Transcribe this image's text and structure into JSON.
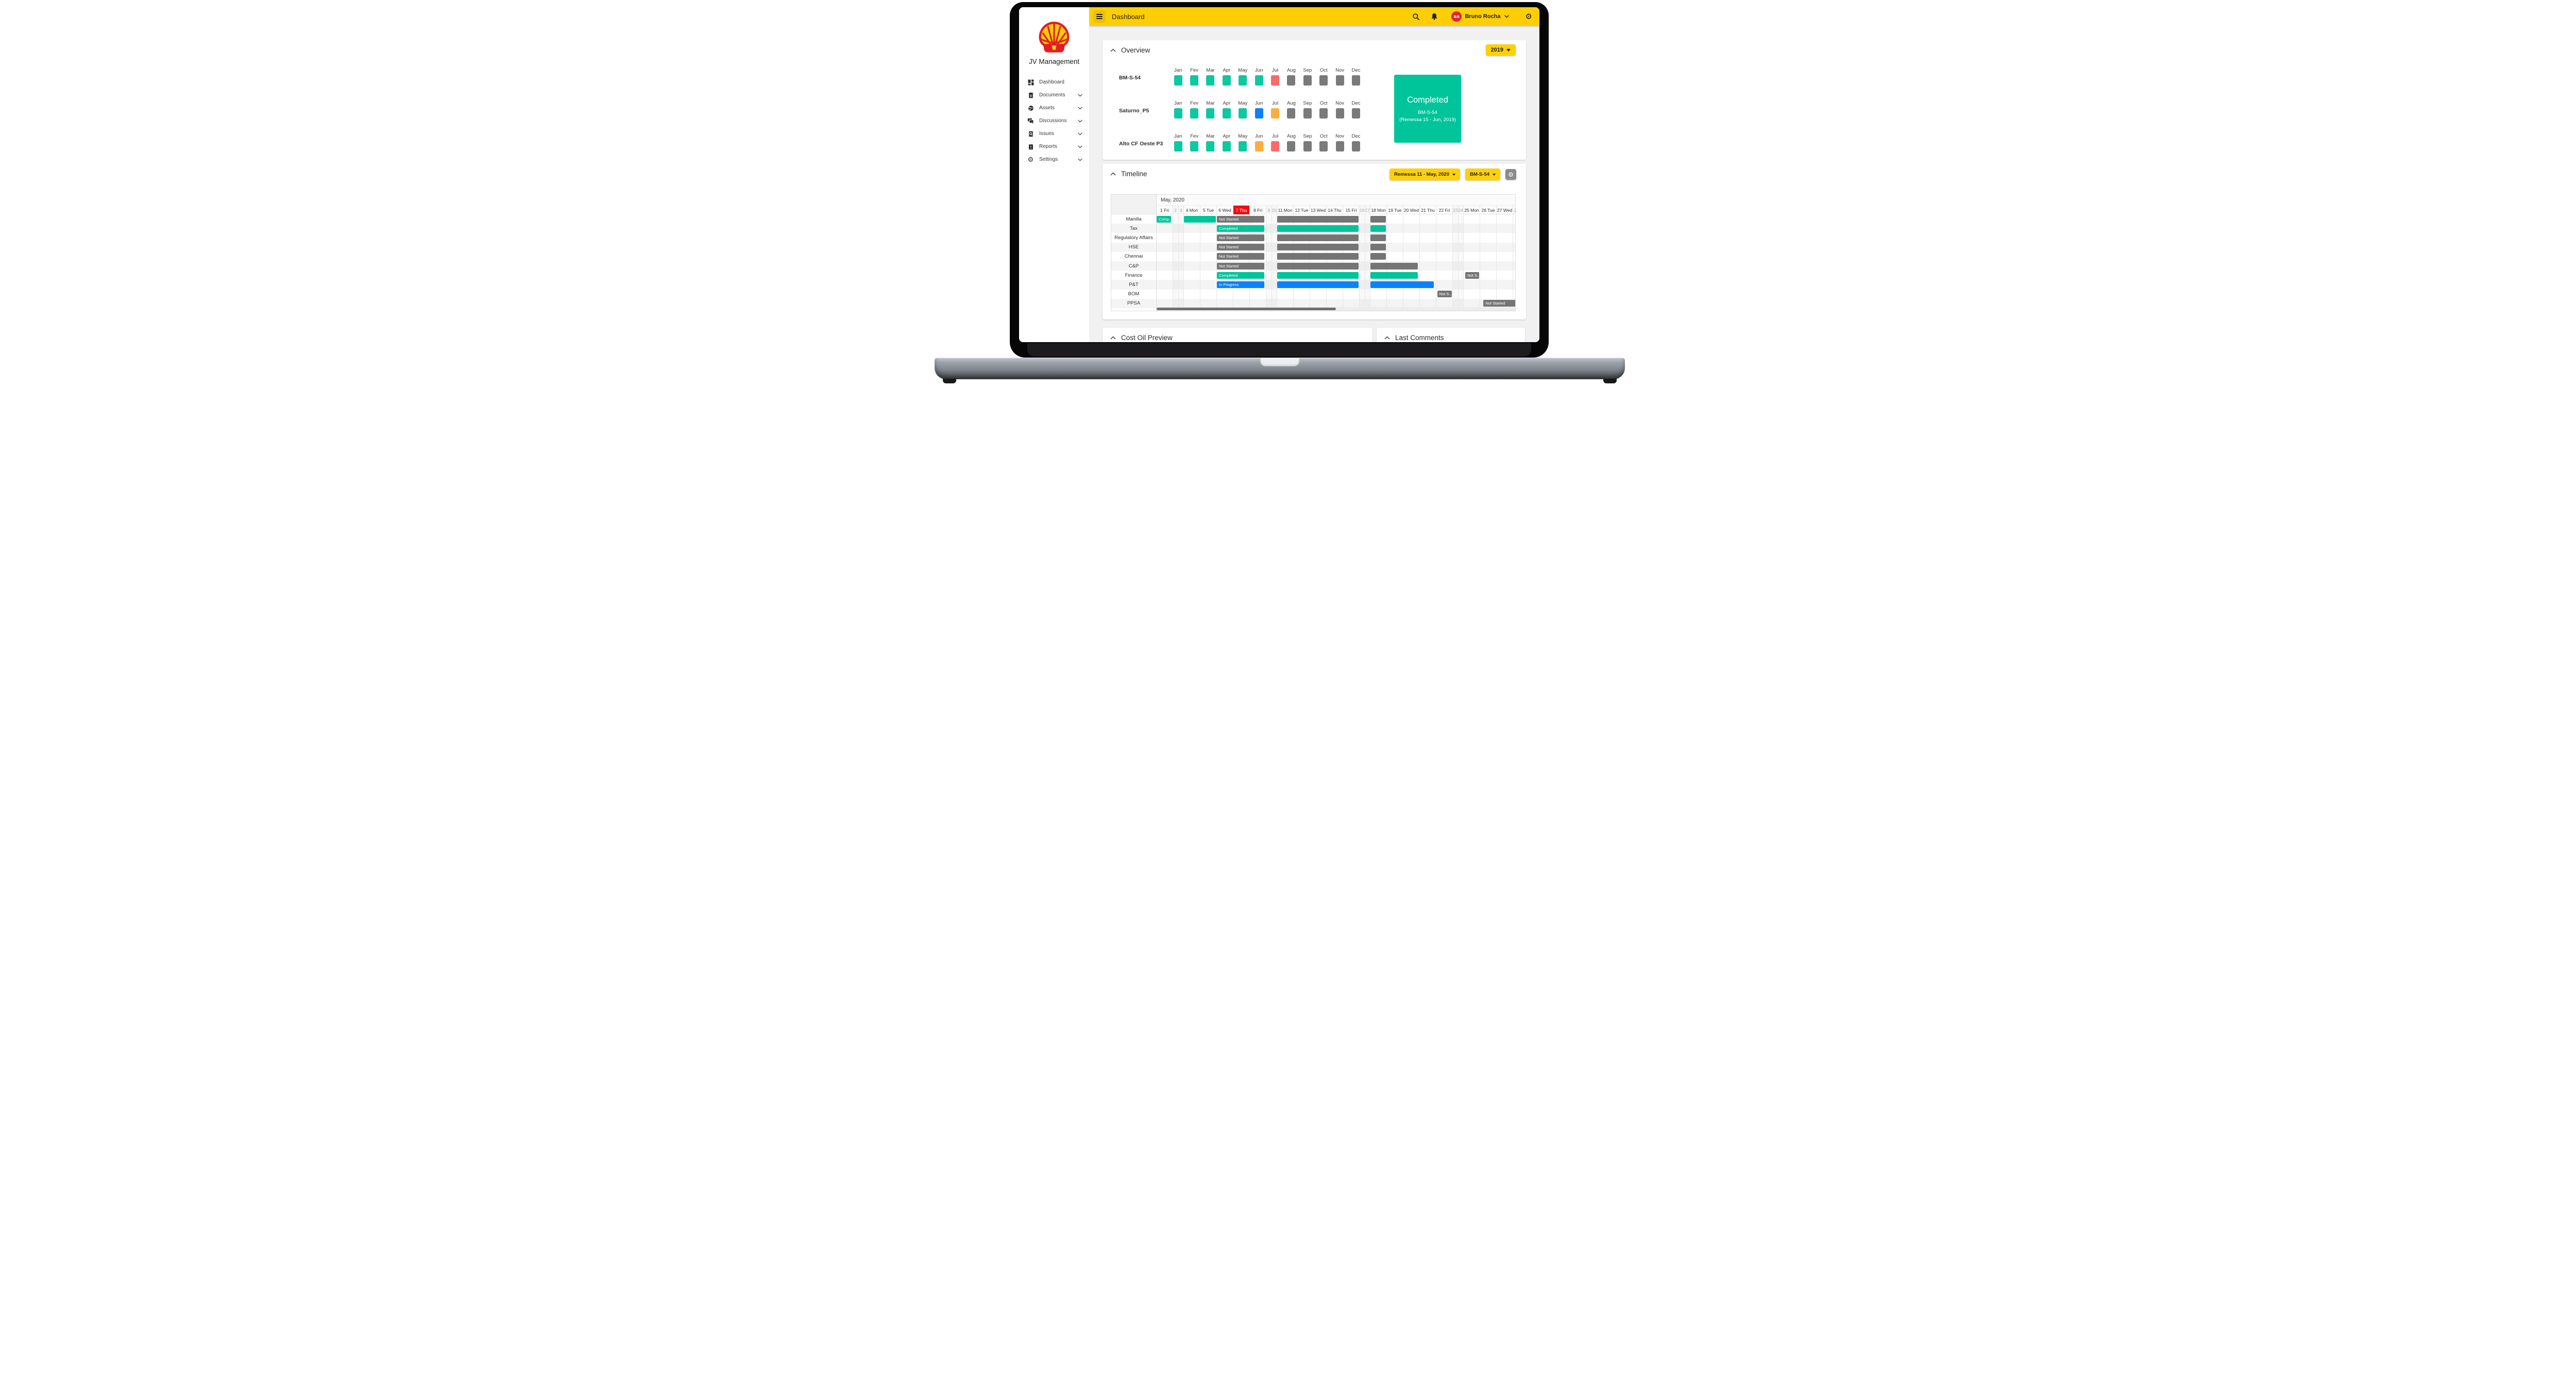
{
  "topbar": {
    "title": "Dashboard",
    "user_initials": "BR",
    "user_name": "Bruno Rocha",
    "icons": [
      "menu-icon",
      "search-icon",
      "bell-icon",
      "chevron-down-icon",
      "gear-icon"
    ]
  },
  "sidebar": {
    "brand": "JV Management",
    "logo": "shell-pecten-logo",
    "items": [
      {
        "label": "Dashboard",
        "icon": "dashboard-icon",
        "expandable": false
      },
      {
        "label": "Documents",
        "icon": "document-icon",
        "expandable": true
      },
      {
        "label": "Assets",
        "icon": "globe-icon",
        "expandable": true
      },
      {
        "label": "Discussions",
        "icon": "chat-icon",
        "expandable": true
      },
      {
        "label": "Issues",
        "icon": "issue-search-icon",
        "expandable": true
      },
      {
        "label": "Reports",
        "icon": "report-icon",
        "expandable": true
      },
      {
        "label": "Settings",
        "icon": "gear-icon",
        "expandable": true
      }
    ]
  },
  "overview": {
    "title": "Overview",
    "year_filter": "2019",
    "months": [
      "Jan",
      "Fev",
      "Mar",
      "Apr",
      "May",
      "Jun",
      "Jul",
      "Aug",
      "Sep",
      "Oct",
      "Nov",
      "Dec"
    ],
    "assets": [
      {
        "name": "BM-S-54",
        "month_status": [
          "done",
          "done",
          "done",
          "done",
          "done",
          "done",
          "alert",
          "none",
          "none",
          "none",
          "none",
          "none"
        ]
      },
      {
        "name": "Saturno_P5",
        "month_status": [
          "done",
          "done",
          "done",
          "done",
          "done",
          "progress",
          "warning",
          "none",
          "none",
          "none",
          "none",
          "none"
        ]
      },
      {
        "name": "Alto CF Oeste P3",
        "month_status": [
          "done",
          "done",
          "done",
          "done",
          "done",
          "warning",
          "alert",
          "none",
          "none",
          "none",
          "none",
          "none"
        ]
      }
    ],
    "highlight": {
      "status": "Completed",
      "asset": "BM-S-54",
      "detail": "(Remessa 15 - Jun, 2019)"
    }
  },
  "timeline": {
    "title": "Timeline",
    "remessa_filter": "Remessa 11 - May, 2020",
    "asset_filter": "BM-S-54",
    "month_label": "May, 2020",
    "days": [
      {
        "num": 1,
        "dow": "Fri"
      },
      {
        "num": 2,
        "dow": ""
      },
      {
        "num": 3,
        "dow": ""
      },
      {
        "num": 4,
        "dow": "Mon"
      },
      {
        "num": 5,
        "dow": "Tue"
      },
      {
        "num": 6,
        "dow": "Wed"
      },
      {
        "num": 7,
        "dow": "Thu",
        "today": true
      },
      {
        "num": 8,
        "dow": "Fri"
      },
      {
        "num": 9,
        "dow": ""
      },
      {
        "num": 10,
        "dow": ""
      },
      {
        "num": 11,
        "dow": "Mon"
      },
      {
        "num": 12,
        "dow": "Tue"
      },
      {
        "num": 13,
        "dow": "Wed"
      },
      {
        "num": 14,
        "dow": "Thu"
      },
      {
        "num": 15,
        "dow": "Fri"
      },
      {
        "num": 16,
        "dow": ""
      },
      {
        "num": 17,
        "dow": ""
      },
      {
        "num": 18,
        "dow": "Mon"
      },
      {
        "num": 19,
        "dow": "Tue"
      },
      {
        "num": 20,
        "dow": "Wed"
      },
      {
        "num": 21,
        "dow": "Thu"
      },
      {
        "num": 22,
        "dow": "Fri"
      },
      {
        "num": 23,
        "dow": ""
      },
      {
        "num": 24,
        "dow": ""
      },
      {
        "num": 25,
        "dow": "Mon"
      },
      {
        "num": 26,
        "dow": "Tue"
      },
      {
        "num": 27,
        "dow": "Wed"
      },
      {
        "num": 28,
        "dow": "Thu"
      }
    ],
    "rows": [
      {
        "name": "Manilla",
        "bars": [
          {
            "start": 1,
            "span": 0.95,
            "color": "teal",
            "label": "Comp..."
          },
          {
            "start": 4,
            "span": 2,
            "color": "teal",
            "label": ""
          },
          {
            "start": 6,
            "span": 2.95,
            "color": "gray",
            "label": "Not Started"
          },
          {
            "start": 11,
            "span": 5,
            "color": "gray",
            "label": ""
          },
          {
            "start": 18,
            "span": 1,
            "color": "gray",
            "label": ""
          }
        ]
      },
      {
        "name": "Tax",
        "bars": [
          {
            "start": 6,
            "span": 2.95,
            "color": "teal",
            "label": "Completed"
          },
          {
            "start": 11,
            "span": 5,
            "color": "teal",
            "label": ""
          },
          {
            "start": 18,
            "span": 1,
            "color": "teal",
            "label": ""
          }
        ]
      },
      {
        "name": "Regulatory Affairs",
        "bars": [
          {
            "start": 6,
            "span": 2.95,
            "color": "gray",
            "label": "Not Started"
          },
          {
            "start": 11,
            "span": 5,
            "color": "gray",
            "label": ""
          },
          {
            "start": 18,
            "span": 1,
            "color": "gray",
            "label": ""
          }
        ]
      },
      {
        "name": "HSE",
        "bars": [
          {
            "start": 6,
            "span": 2.95,
            "color": "gray",
            "label": "Not Started"
          },
          {
            "start": 11,
            "span": 5,
            "color": "gray",
            "label": ""
          },
          {
            "start": 18,
            "span": 1,
            "color": "gray",
            "label": ""
          }
        ]
      },
      {
        "name": "Chennai",
        "bars": [
          {
            "start": 6,
            "span": 2.95,
            "color": "gray",
            "label": "Not Started"
          },
          {
            "start": 11,
            "span": 5,
            "color": "gray",
            "label": ""
          },
          {
            "start": 18,
            "span": 1,
            "color": "gray",
            "label": ""
          }
        ]
      },
      {
        "name": "C&P",
        "bars": [
          {
            "start": 6,
            "span": 2.95,
            "color": "gray",
            "label": "Not Started"
          },
          {
            "start": 11,
            "span": 5,
            "color": "gray",
            "label": ""
          },
          {
            "start": 18,
            "span": 2.95,
            "color": "gray",
            "label": ""
          }
        ]
      },
      {
        "name": "Finance",
        "bars": [
          {
            "start": 6,
            "span": 2.95,
            "color": "teal",
            "label": "Completed"
          },
          {
            "start": 11,
            "span": 5,
            "color": "teal",
            "label": ""
          },
          {
            "start": 18,
            "span": 2.95,
            "color": "teal",
            "label": ""
          },
          {
            "start": 25.1,
            "span": 0.9,
            "color": "gray",
            "label": "Not S..."
          }
        ]
      },
      {
        "name": "P&T",
        "bars": [
          {
            "start": 6,
            "span": 2.95,
            "color": "blue",
            "label": "In Progress"
          },
          {
            "start": 11,
            "span": 5,
            "color": "blue",
            "label": ""
          },
          {
            "start": 18,
            "span": 3.9,
            "color": "blue",
            "label": ""
          }
        ]
      },
      {
        "name": "BOM",
        "bars": [
          {
            "start": 22.05,
            "span": 0.95,
            "color": "gray",
            "label": "Not S..."
          }
        ]
      },
      {
        "name": "PPSA",
        "bars": [
          {
            "start": 26.2,
            "span": 2.6,
            "color": "gray",
            "label": "Not Started"
          }
        ]
      }
    ]
  },
  "sections": {
    "cost_oil": "Cost Oil Preview",
    "last_comments": "Last Comments"
  },
  "colors": {
    "accent_yellow": "#fcce05",
    "teal": "#00c49a",
    "gray_bar": "#757575",
    "blue": "#0b82f7",
    "orange": "#fbad41",
    "alert_red": "#f96b6b",
    "today_red": "#f20d11",
    "avatar_red": "#e3242b",
    "month_done": "#0dc8a0",
    "month_none": "#7a7a7a"
  }
}
